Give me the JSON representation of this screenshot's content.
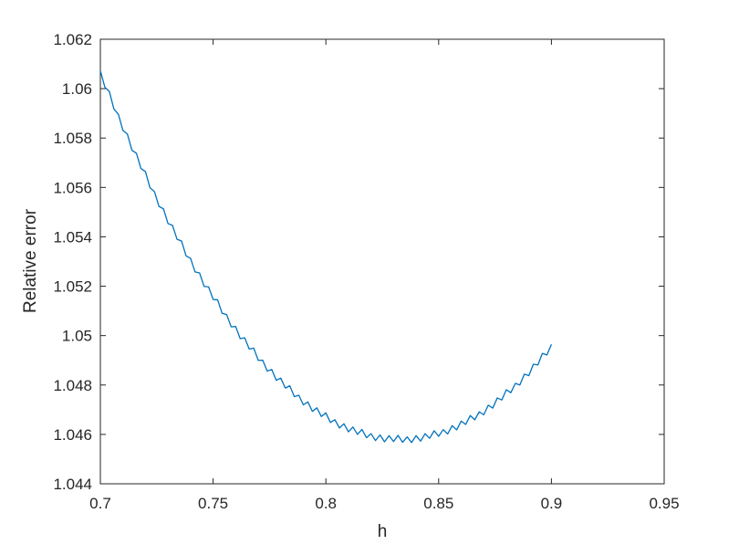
{
  "figure": {
    "background": "#ffffff"
  },
  "chart_data": {
    "type": "line",
    "title": "",
    "xlabel": "h",
    "ylabel": "Relative error",
    "xlim": [
      0.7,
      0.95
    ],
    "ylim": [
      1.044,
      1.062
    ],
    "xticks": [
      0.7,
      0.75,
      0.8,
      0.85,
      0.9,
      0.95
    ],
    "xtick_labels": [
      "0.7",
      "0.75",
      "0.8",
      "0.85",
      "0.9",
      "0.95"
    ],
    "yticks": [
      1.044,
      1.046,
      1.048,
      1.05,
      1.052,
      1.054,
      1.056,
      1.058,
      1.06,
      1.062
    ],
    "ytick_labels": [
      "1.044",
      "1.046",
      "1.048",
      "1.05",
      "1.052",
      "1.054",
      "1.056",
      "1.058",
      "1.06",
      "1.062"
    ],
    "grid": false,
    "legend": null,
    "box": true,
    "tick_direction": "in",
    "line_color": "#0072BD",
    "axis_color": "#262626",
    "series": [
      {
        "name": "relative-error-vs-h",
        "x": [
          0.7,
          0.702,
          0.704,
          0.706,
          0.708,
          0.71,
          0.712,
          0.714,
          0.716,
          0.718,
          0.72,
          0.722,
          0.724,
          0.726,
          0.728,
          0.73,
          0.732,
          0.734,
          0.736,
          0.738,
          0.74,
          0.742,
          0.744,
          0.746,
          0.748,
          0.75,
          0.752,
          0.754,
          0.756,
          0.758,
          0.76,
          0.762,
          0.764,
          0.766,
          0.768,
          0.77,
          0.772,
          0.774,
          0.776,
          0.778,
          0.78,
          0.782,
          0.784,
          0.786,
          0.788,
          0.79,
          0.792,
          0.794,
          0.796,
          0.798,
          0.8,
          0.802,
          0.804,
          0.806,
          0.808,
          0.81,
          0.812,
          0.814,
          0.816,
          0.818,
          0.82,
          0.822,
          0.824,
          0.826,
          0.828,
          0.83,
          0.832,
          0.834,
          0.836,
          0.838,
          0.84,
          0.842,
          0.844,
          0.846,
          0.848,
          0.85,
          0.852,
          0.854,
          0.856,
          0.858,
          0.86,
          0.862,
          0.864,
          0.866,
          0.868,
          0.87,
          0.872,
          0.874,
          0.876,
          0.878,
          0.88,
          0.882,
          0.884,
          0.886,
          0.888,
          0.89,
          0.892,
          0.894,
          0.896,
          0.898,
          0.9
        ],
        "y": [
          1.06073,
          1.060058,
          1.059883,
          1.059174,
          1.058962,
          1.058307,
          1.058159,
          1.057507,
          1.057382,
          1.056764,
          1.056643,
          1.055988,
          1.05583,
          1.055228,
          1.055134,
          1.054536,
          1.054464,
          1.0539,
          1.053832,
          1.05323,
          1.053126,
          1.052578,
          1.052537,
          1.051992,
          1.051974,
          1.051463,
          1.051449,
          1.050901,
          1.05085,
          1.050356,
          1.050368,
          1.049877,
          1.049913,
          1.049456,
          1.049495,
          1.049,
          1.049003,
          1.048562,
          1.048628,
          1.048191,
          1.04828,
          1.047876,
          1.047969,
          1.047528,
          1.047584,
          1.047197,
          1.047316,
          1.046933,
          1.047075,
          1.046725,
          1.046871,
          1.046484,
          1.046594,
          1.04626,
          1.046433,
          1.046103,
          1.046299,
          1.046002,
          1.046202,
          1.045868,
          1.046031,
          1.045751,
          1.045978,
          1.045701,
          1.045951,
          1.045708,
          1.045961,
          1.045681,
          1.045898,
          1.045671,
          1.045951,
          1.045728,
          1.046031,
          1.045841,
          1.046148,
          1.045922,
          1.046192,
          1.046019,
          1.046353,
          1.046183,
          1.04654,
          1.046404,
          1.046764,
          1.046591,
          1.046915,
          1.046795,
          1.047183,
          1.047066,
          1.047477,
          1.047394,
          1.047808,
          1.047689,
          1.048066,
          1.048,
          1.048441,
          1.048378,
          1.048842,
          1.048813,
          1.04928,
          1.049215,
          1.049646
        ]
      }
    ]
  }
}
